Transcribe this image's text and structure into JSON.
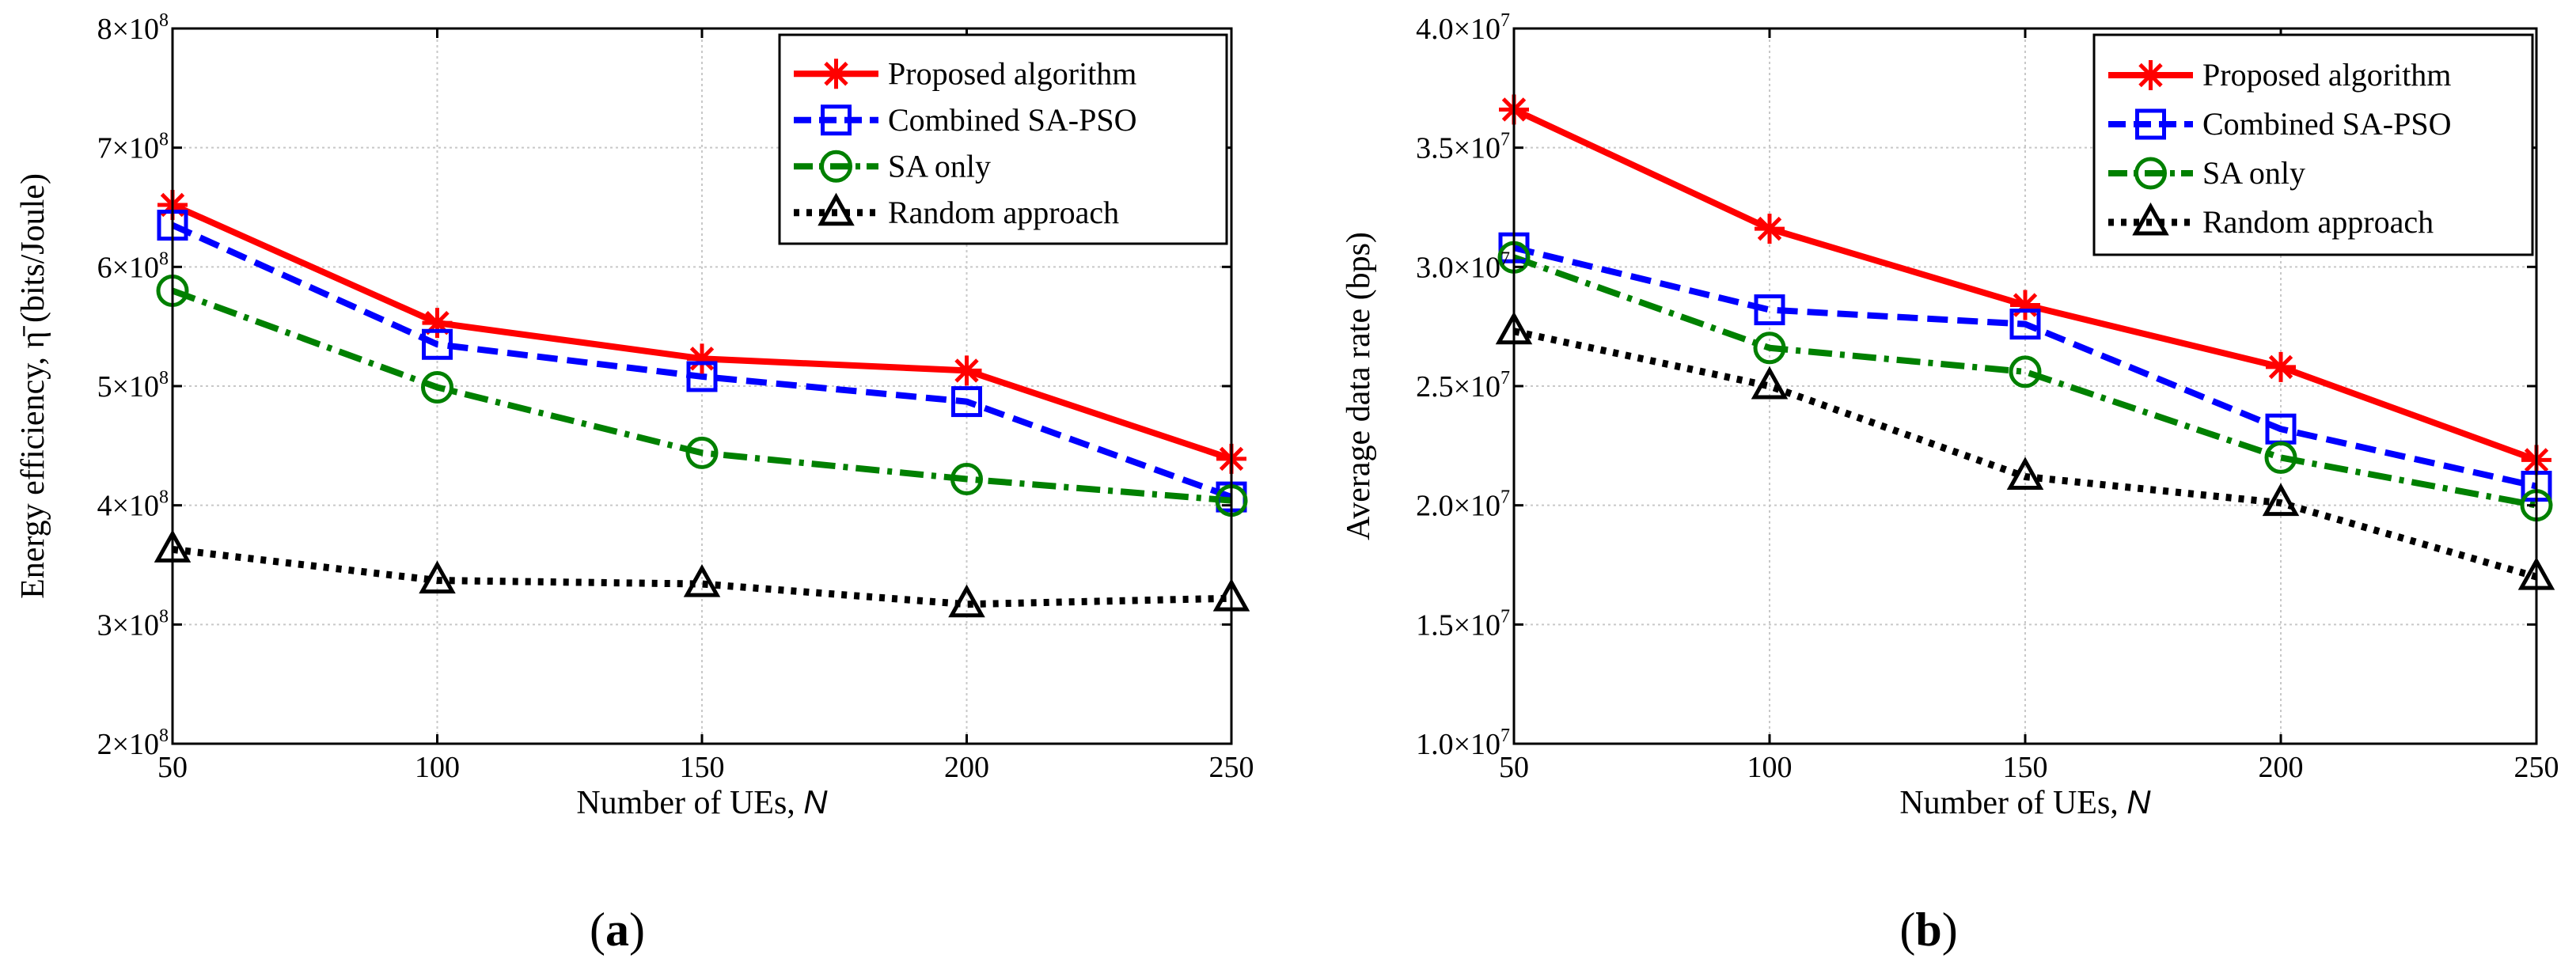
{
  "chart_data": [
    {
      "type": "line",
      "panel": "a",
      "caption": "(a)",
      "xlabel": "Number of UEs, ",
      "xlabel_var": "N",
      "ylabel": "Energy efficiency, η̄ (bits/Joule)",
      "x": [
        50,
        100,
        150,
        200,
        250
      ],
      "xlim": [
        50,
        250
      ],
      "ylim": [
        200000000,
        800000000
      ],
      "xticks": [
        "50",
        "100",
        "150",
        "200",
        "250"
      ],
      "yticks": [
        {
          "value": 200000000,
          "mant": "2×10",
          "exp": "8"
        },
        {
          "value": 300000000,
          "mant": "3×10",
          "exp": "8"
        },
        {
          "value": 400000000,
          "mant": "4×10",
          "exp": "8"
        },
        {
          "value": 500000000,
          "mant": "5×10",
          "exp": "8"
        },
        {
          "value": 600000000,
          "mant": "6×10",
          "exp": "8"
        },
        {
          "value": 700000000,
          "mant": "7×10",
          "exp": "8"
        },
        {
          "value": 800000000,
          "mant": "8×10",
          "exp": "8"
        }
      ],
      "legend_position": "top-right",
      "series": [
        {
          "name": "Proposed algorithm",
          "color": "#ff0000",
          "dash": "solid",
          "marker": "asterisk",
          "values": [
            652000000,
            553000000,
            523000000,
            513000000,
            439000000
          ]
        },
        {
          "name": "Combined SA-PSO",
          "color": "#0000ff",
          "dash": "dashed",
          "marker": "square",
          "values": [
            635000000,
            535000000,
            508000000,
            487000000,
            407000000
          ]
        },
        {
          "name": "SA only",
          "color": "#008000",
          "dash": "dashdot",
          "marker": "circle",
          "values": [
            580000000,
            499000000,
            444000000,
            422000000,
            404000000
          ]
        },
        {
          "name": "Random approach",
          "color": "#000000",
          "dash": "dotted",
          "marker": "triangle",
          "values": [
            363000000,
            337000000,
            334000000,
            317000000,
            322000000
          ]
        }
      ]
    },
    {
      "type": "line",
      "panel": "b",
      "caption": "(b)",
      "xlabel": "Number of UEs, ",
      "xlabel_var": "N",
      "ylabel": "Average data rate (bps)",
      "x": [
        50,
        100,
        150,
        200,
        250
      ],
      "xlim": [
        50,
        250
      ],
      "ylim": [
        10000000,
        40000000
      ],
      "xticks": [
        "50",
        "100",
        "150",
        "200",
        "250"
      ],
      "yticks": [
        {
          "value": 10000000,
          "mant": "1.0×10",
          "exp": "7"
        },
        {
          "value": 15000000,
          "mant": "1.5×10",
          "exp": "7"
        },
        {
          "value": 20000000,
          "mant": "2.0×10",
          "exp": "7"
        },
        {
          "value": 25000000,
          "mant": "2.5×10",
          "exp": "7"
        },
        {
          "value": 30000000,
          "mant": "3.0×10",
          "exp": "7"
        },
        {
          "value": 35000000,
          "mant": "3.5×10",
          "exp": "7"
        },
        {
          "value": 40000000,
          "mant": "4.0×10",
          "exp": "7"
        }
      ],
      "legend_position": "top-right",
      "series": [
        {
          "name": "Proposed algorithm",
          "color": "#ff0000",
          "dash": "solid",
          "marker": "asterisk",
          "values": [
            36600000,
            31600000,
            28400000,
            25800000,
            21900000
          ]
        },
        {
          "name": "Combined SA-PSO",
          "color": "#0000ff",
          "dash": "dashed",
          "marker": "square",
          "values": [
            30800000,
            28200000,
            27600000,
            23200000,
            20800000
          ]
        },
        {
          "name": "SA only",
          "color": "#008000",
          "dash": "dashdot",
          "marker": "circle",
          "values": [
            30400000,
            26600000,
            25600000,
            22000000,
            20000000
          ]
        },
        {
          "name": "Random approach",
          "color": "#000000",
          "dash": "dotted",
          "marker": "triangle",
          "values": [
            27300000,
            25000000,
            21200000,
            20100000,
            17000000
          ]
        }
      ]
    }
  ]
}
